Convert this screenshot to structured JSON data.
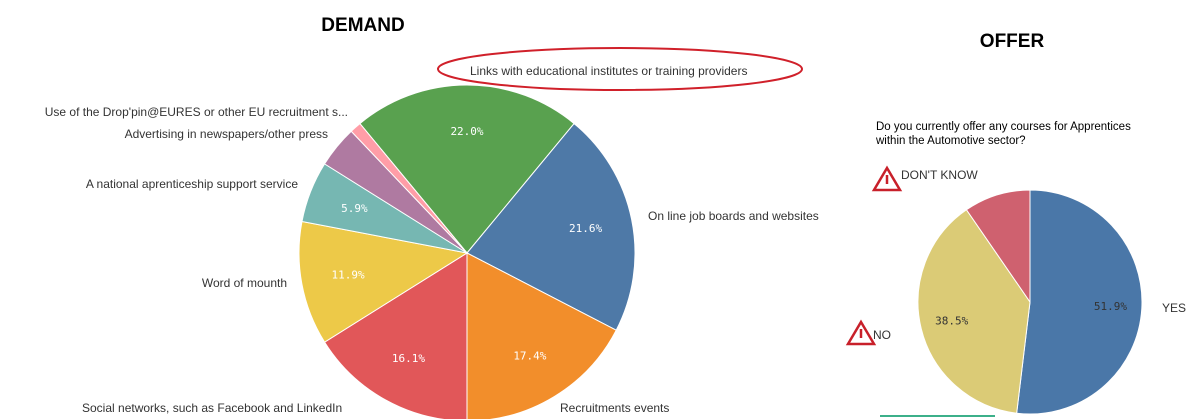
{
  "chart_data": [
    {
      "type": "pie",
      "title": "DEMAND",
      "categories": [
        "Links with educational institutes or training providers",
        "On line job boards and websites",
        "Recruitments events",
        "Social networks, such as Facebook and LinkedIn",
        "Word of mounth",
        "A national aprenticeship support service",
        "Advertising in newspapers/other press",
        "Use of the Drop'pin@EURES or other EU recruitment s..."
      ],
      "values": [
        22.0,
        21.6,
        17.4,
        16.1,
        11.9,
        5.9,
        4.0,
        1.1
      ],
      "value_labels": [
        "22.0%",
        "21.6%",
        "17.4%",
        "16.1%",
        "11.9%",
        "5.9%",
        null,
        null
      ],
      "colors": [
        "#59a14f",
        "#4e79a7",
        "#f28e2b",
        "#e15759",
        "#edc948",
        "#76b7b2",
        "#af7aa1",
        "#ff9da7"
      ]
    },
    {
      "type": "pie",
      "title": "OFFER",
      "subtitle": "Do you currently offer any courses for Apprentices within the Automotive sector?",
      "categories": [
        "YES",
        "NO",
        "DON'T KNOW"
      ],
      "values": [
        51.9,
        38.5,
        9.6
      ],
      "value_labels": [
        "51.9%",
        "38.5%",
        null
      ],
      "colors": [
        "#4a77a8",
        "#dbcb76",
        "#cf616f"
      ]
    }
  ]
}
